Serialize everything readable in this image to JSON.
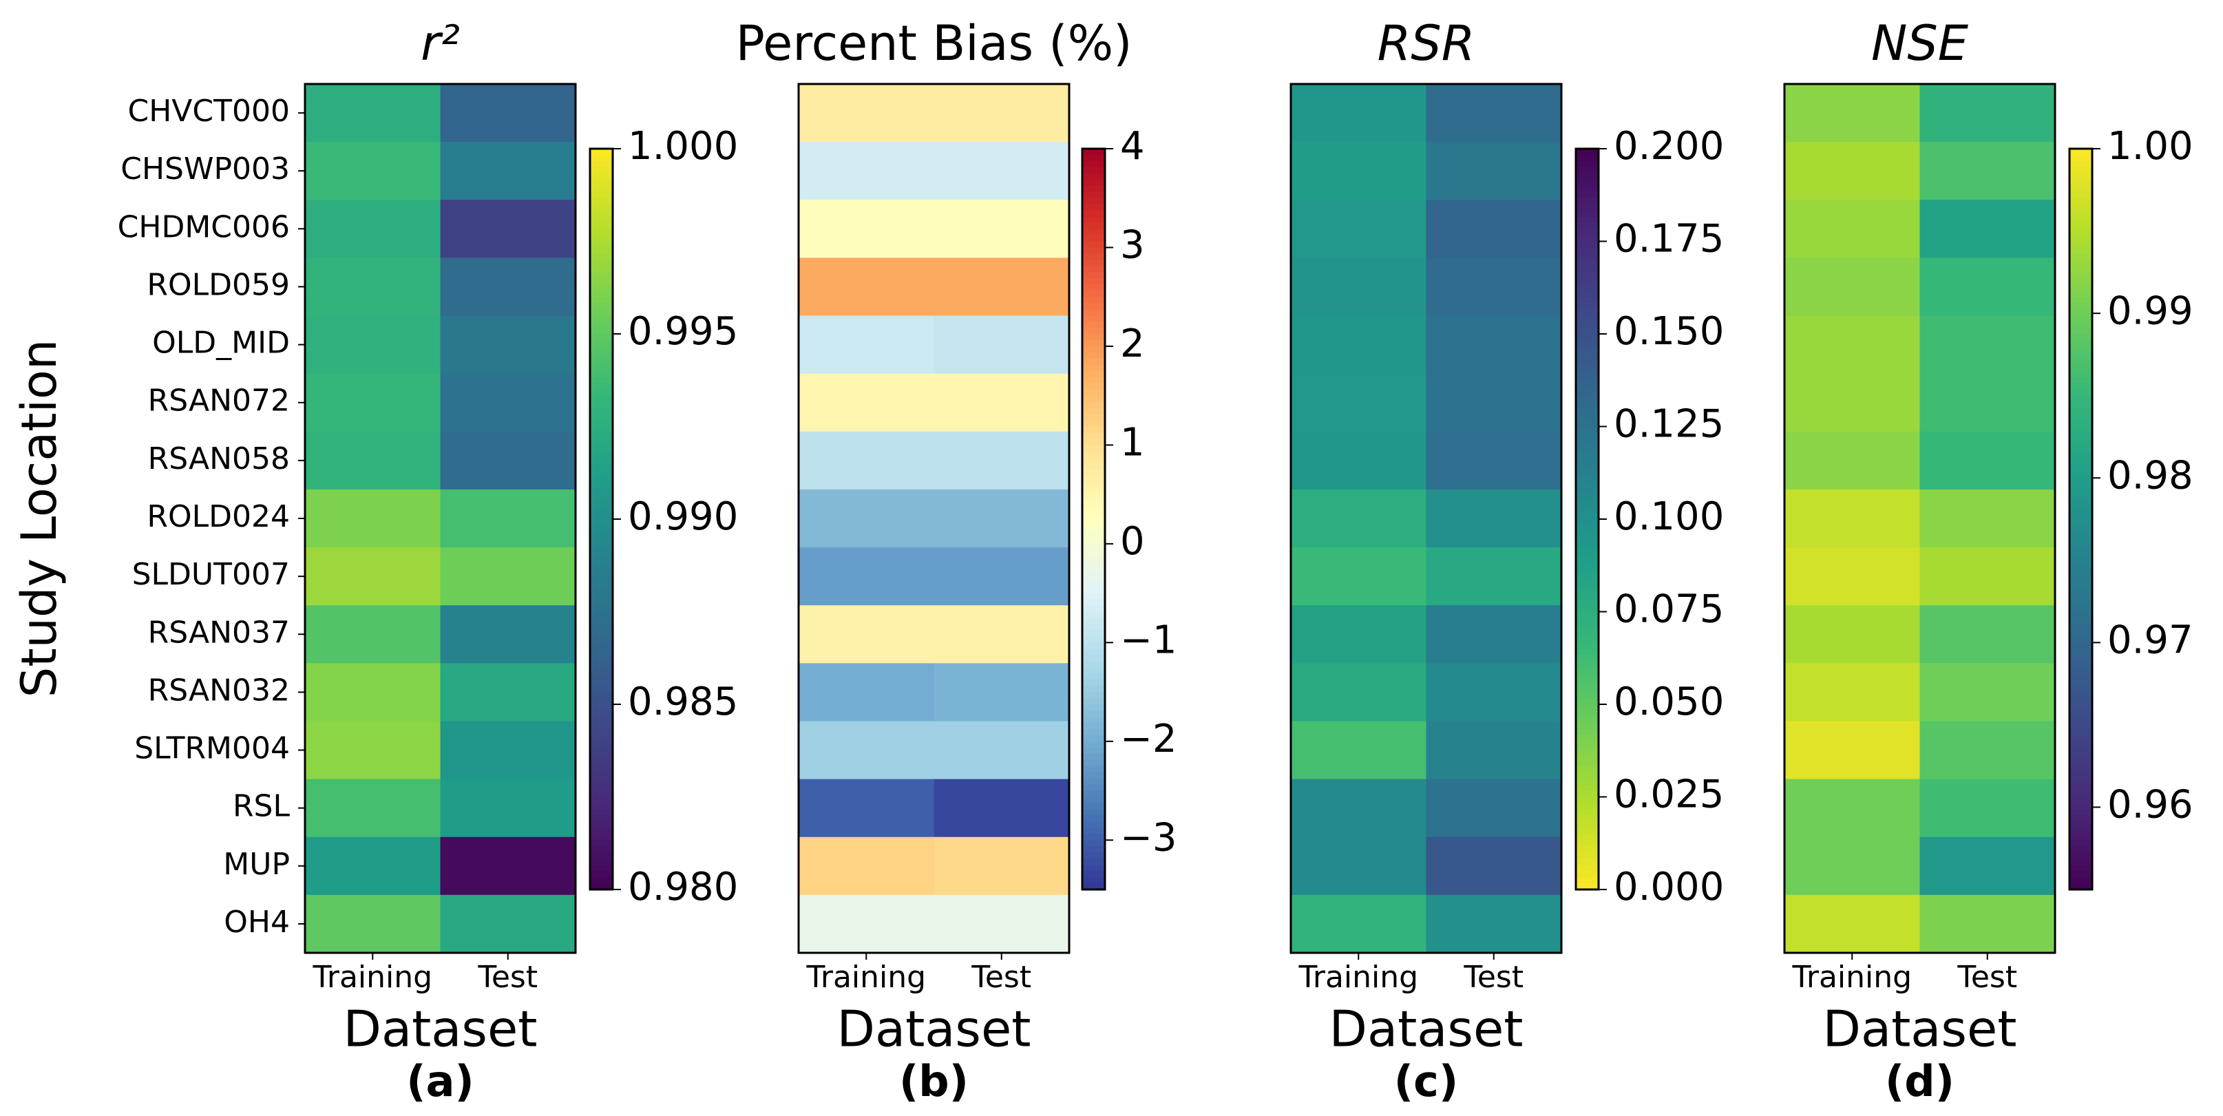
{
  "chart_data": [
    {
      "type": "heatmap",
      "title": "r²",
      "title_italic": true,
      "panel_label": "(a)",
      "xlabel": "Dataset",
      "ylabel": "Study Location",
      "x": [
        "Training",
        "Test"
      ],
      "y": [
        "CHVCT000",
        "CHSWP003",
        "CHDMC006",
        "ROLD059",
        "OLD_MID",
        "RSAN072",
        "RSAN058",
        "ROLD024",
        "SLDUT007",
        "RSAN037",
        "RSAN032",
        "SLTRM004",
        "RSL",
        "MUP",
        "OH4"
      ],
      "values": [
        [
          0.9925,
          0.9865
        ],
        [
          0.9935,
          0.9885
        ],
        [
          0.9925,
          0.984
        ],
        [
          0.993,
          0.987
        ],
        [
          0.9928,
          0.988
        ],
        [
          0.9932,
          0.9875
        ],
        [
          0.993,
          0.987
        ],
        [
          0.996,
          0.994
        ],
        [
          0.997,
          0.9955
        ],
        [
          0.9945,
          0.989
        ],
        [
          0.9962,
          0.992
        ],
        [
          0.9965,
          0.9905
        ],
        [
          0.994,
          0.991
        ],
        [
          0.991,
          0.9805
        ],
        [
          0.995,
          0.992
        ]
      ],
      "colormap": "viridis",
      "zlim": [
        0.98,
        1.0
      ],
      "zticks": [
        {
          "value": 0.98,
          "label": "0.980"
        },
        0.985,
        {
          "value": 0.99,
          "label": "0.990"
        },
        0.995,
        {
          "value": 1.0,
          "label": "1.000"
        }
      ]
    },
    {
      "type": "heatmap",
      "title": "Percent Bias (%)",
      "title_italic": false,
      "panel_label": "(b)",
      "xlabel": "Dataset",
      "x": [
        "Training",
        "Test"
      ],
      "values": [
        [
          0.7,
          0.7
        ],
        [
          -0.7,
          -0.7
        ],
        [
          0.3,
          0.3
        ],
        [
          1.8,
          1.8
        ],
        [
          -0.8,
          -0.9
        ],
        [
          0.5,
          0.5
        ],
        [
          -1.0,
          -1.0
        ],
        [
          -1.8,
          -1.8
        ],
        [
          -2.2,
          -2.2
        ],
        [
          0.6,
          0.6
        ],
        [
          -2.0,
          -1.9
        ],
        [
          -1.4,
          -1.4
        ],
        [
          -3.0,
          -3.3
        ],
        [
          1.2,
          1.1
        ],
        [
          -0.3,
          -0.3
        ]
      ],
      "colormap": "RdYlBu_r",
      "zlim": [
        -3.5,
        4
      ],
      "zticks": [
        {
          "value": -3,
          "label": "−3"
        },
        {
          "value": -2,
          "label": "−2"
        },
        {
          "value": -1,
          "label": "−1"
        },
        0,
        1,
        2,
        3,
        4
      ]
    },
    {
      "type": "heatmap",
      "title": "RSR",
      "title_italic": true,
      "panel_label": "(c)",
      "xlabel": "Dataset",
      "x": [
        "Training",
        "Test"
      ],
      "values": [
        [
          0.095,
          0.13
        ],
        [
          0.09,
          0.12
        ],
        [
          0.093,
          0.135
        ],
        [
          0.097,
          0.13
        ],
        [
          0.095,
          0.125
        ],
        [
          0.093,
          0.125
        ],
        [
          0.095,
          0.128
        ],
        [
          0.075,
          0.1
        ],
        [
          0.065,
          0.08
        ],
        [
          0.085,
          0.115
        ],
        [
          0.078,
          0.105
        ],
        [
          0.06,
          0.11
        ],
        [
          0.105,
          0.125
        ],
        [
          0.105,
          0.145
        ],
        [
          0.07,
          0.1
        ]
      ],
      "colormap": "viridis_r",
      "zlim": [
        0,
        0.2
      ],
      "zticks": [
        {
          "value": 0,
          "label": "0.000"
        },
        0.025,
        {
          "value": 0.05,
          "label": "0.050"
        },
        0.075,
        {
          "value": 0.1,
          "label": "0.100"
        },
        0.125,
        {
          "value": 0.15,
          "label": "0.150"
        },
        0.175,
        {
          "value": 0.2,
          "label": "0.200"
        }
      ]
    },
    {
      "type": "heatmap",
      "title": "NSE",
      "title_italic": true,
      "panel_label": "(d)",
      "xlabel": "Dataset",
      "x": [
        "Training",
        "Test"
      ],
      "values": [
        [
          0.992,
          0.984
        ],
        [
          0.994,
          0.987
        ],
        [
          0.993,
          0.981
        ],
        [
          0.992,
          0.985
        ],
        [
          0.993,
          0.986
        ],
        [
          0.993,
          0.986
        ],
        [
          0.992,
          0.985
        ],
        [
          0.996,
          0.992
        ],
        [
          0.997,
          0.994
        ],
        [
          0.994,
          0.988
        ],
        [
          0.996,
          0.99
        ],
        [
          0.998,
          0.988
        ],
        [
          0.99,
          0.986
        ],
        [
          0.99,
          0.979
        ],
        [
          0.996,
          0.991
        ]
      ],
      "colormap": "viridis",
      "zlim": [
        0.955,
        1.0
      ],
      "zticks": [
        0.96,
        0.97,
        0.98,
        0.99,
        {
          "value": 1.0,
          "label": "1.00"
        }
      ]
    }
  ]
}
